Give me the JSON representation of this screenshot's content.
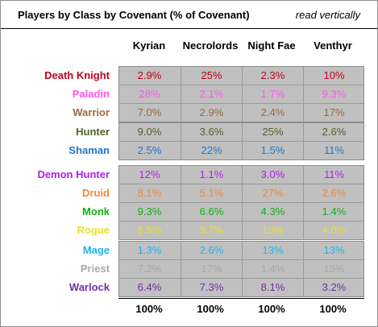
{
  "header": {
    "title": "Players by Class by Covenant (% of Covenant)",
    "note": "read vertically"
  },
  "columns": [
    "Kyrian",
    "Necrolords",
    "Night Fae",
    "Venthyr"
  ],
  "groups": [
    {
      "rows": [
        {
          "class": "Death Knight",
          "color": "#c0001a",
          "values": [
            "2.9%",
            "25%",
            "2.3%",
            "10%"
          ]
        },
        {
          "class": "Paladin",
          "color": "#ff55e8",
          "values": [
            "28%",
            "2.1%",
            "1.7%",
            "9.3%"
          ]
        },
        {
          "class": "Warrior",
          "color": "#9a6a3c",
          "values": [
            "7.0%",
            "2.9%",
            "2.4%",
            "17%"
          ]
        }
      ]
    },
    {
      "rows": [
        {
          "class": "Hunter",
          "color": "#4f6228",
          "values": [
            "9.0%",
            "3.6%",
            "25%",
            "2.6%"
          ]
        },
        {
          "class": "Shaman",
          "color": "#1f78c8",
          "values": [
            "2.5%",
            "22%",
            "1.5%",
            "11%"
          ]
        }
      ]
    },
    {
      "rows": [
        {
          "class": "Demon Hunter",
          "color": "#b020e8",
          "values": [
            "12%",
            "1.1%",
            "3.0%",
            "11%"
          ]
        },
        {
          "class": "Druid",
          "color": "#f0883c",
          "values": [
            "8.1%",
            "5.1%",
            "27%",
            "2.6%"
          ]
        },
        {
          "class": "Monk",
          "color": "#10b010",
          "values": [
            "9.3%",
            "6.6%",
            "4.3%",
            "1.4%"
          ]
        },
        {
          "class": "Rogue",
          "color": "#e8e030",
          "values": [
            "6.5%",
            "3.7%",
            "10%",
            "4.0%"
          ]
        }
      ]
    },
    {
      "rows": [
        {
          "class": "Mage",
          "color": "#20b4e8",
          "values": [
            "1.3%",
            "2.6%",
            "13%",
            "13%"
          ]
        },
        {
          "class": "Priest",
          "color": "#a8a8a8",
          "values": [
            "7.2%",
            "17%",
            "1.4%",
            "15%"
          ]
        },
        {
          "class": "Warlock",
          "color": "#7030a0",
          "values": [
            "6.4%",
            "7.3%",
            "8.1%",
            "3.2%"
          ]
        }
      ]
    }
  ],
  "totals": [
    "100%",
    "100%",
    "100%",
    "100%"
  ]
}
